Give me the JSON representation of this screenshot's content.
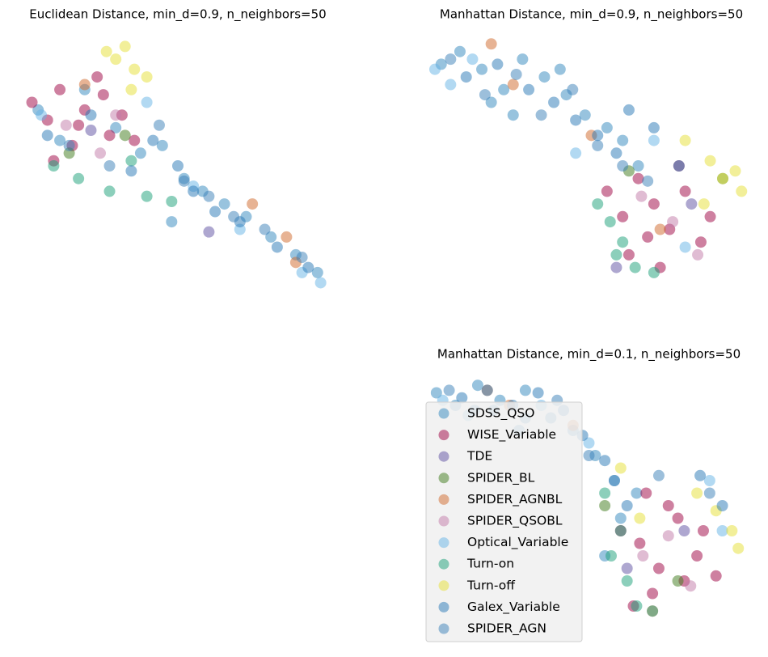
{
  "chart_data": [
    {
      "type": "scatter",
      "title": "Euclidean Distance, min_d=0.9, n_neighbors=50",
      "xlim": [
        0,
        100
      ],
      "ylim": [
        0,
        100
      ],
      "series": [
        {
          "color": "#3288bd",
          "x": [
            5,
            12,
            20,
            30,
            38,
            45,
            52,
            58,
            65,
            72,
            80,
            88,
            95,
            48
          ],
          "y": [
            72,
            60,
            80,
            65,
            55,
            58,
            45,
            40,
            35,
            30,
            22,
            15,
            8,
            28
          ]
        },
        {
          "color": "#9e0142",
          "x": [
            3,
            8,
            12,
            16,
            20,
            24,
            28,
            32,
            18,
            10,
            26,
            36
          ],
          "y": [
            75,
            68,
            80,
            58,
            72,
            85,
            62,
            70,
            66,
            52,
            78,
            60
          ]
        },
        {
          "color": "#5e4fa2",
          "x": [
            22,
            60
          ],
          "y": [
            64,
            24
          ]
        },
        {
          "color": "#3d7a1a",
          "x": [
            15,
            33
          ],
          "y": [
            55,
            62
          ]
        },
        {
          "color": "#d0672a",
          "x": [
            20,
            74,
            85,
            88
          ],
          "y": [
            82,
            35,
            22,
            12
          ]
        },
        {
          "color": "#c27aa8",
          "x": [
            14,
            25,
            30
          ],
          "y": [
            66,
            55,
            70
          ]
        },
        {
          "color": "#66b3e6",
          "x": [
            6,
            40,
            55,
            70,
            90,
            96
          ],
          "y": [
            70,
            75,
            42,
            25,
            8,
            4
          ]
        },
        {
          "color": "#19a078",
          "x": [
            10,
            18,
            28,
            35,
            40,
            48
          ],
          "y": [
            50,
            45,
            40,
            52,
            38,
            36
          ]
        },
        {
          "color": "#e6e033",
          "x": [
            27,
            30,
            33,
            36,
            35,
            40
          ],
          "y": [
            95,
            92,
            97,
            88,
            80,
            85
          ]
        },
        {
          "color": "#2878b5",
          "x": [
            8,
            22,
            35,
            42,
            50,
            55,
            62,
            70,
            82,
            92
          ],
          "y": [
            62,
            70,
            48,
            60,
            50,
            40,
            32,
            28,
            18,
            10
          ]
        },
        {
          "color": "#3a80b8",
          "x": [
            15,
            28,
            44,
            52,
            60,
            68,
            78,
            90
          ],
          "y": [
            58,
            50,
            66,
            44,
            38,
            30,
            25,
            14
          ]
        }
      ]
    },
    {
      "type": "scatter",
      "title": "Manhattan Distance, min_d=0.9, n_neighbors=50",
      "xlim": [
        0,
        100
      ],
      "ylim": [
        0,
        100
      ],
      "series": [
        {
          "color": "#3288bd",
          "x": [
            2,
            8,
            15,
            22,
            28,
            35,
            42,
            48,
            55,
            60,
            25,
            18,
            40,
            65
          ],
          "y": [
            90,
            95,
            88,
            80,
            92,
            85,
            78,
            70,
            65,
            60,
            70,
            75,
            88,
            50
          ]
        },
        {
          "color": "#9e0142",
          "x": [
            55,
            60,
            65,
            70,
            75,
            80,
            85,
            62,
            72,
            78,
            68,
            88
          ],
          "y": [
            40,
            30,
            45,
            35,
            25,
            40,
            20,
            15,
            10,
            50,
            22,
            30
          ]
        },
        {
          "color": "#5e4fa2",
          "x": [
            58,
            82
          ],
          "y": [
            10,
            35
          ]
        },
        {
          "color": "#3d7a1a",
          "x": [
            62,
            92
          ],
          "y": [
            48,
            45
          ]
        },
        {
          "color": "#d0672a",
          "x": [
            18,
            25,
            50,
            72
          ],
          "y": [
            98,
            82,
            62,
            25
          ]
        },
        {
          "color": "#c27aa8",
          "x": [
            66,
            76,
            84
          ],
          "y": [
            38,
            28,
            15
          ]
        },
        {
          "color": "#66b3e6",
          "x": [
            0,
            5,
            12,
            45,
            70,
            80
          ],
          "y": [
            88,
            82,
            92,
            55,
            60,
            18
          ]
        },
        {
          "color": "#19a078",
          "x": [
            52,
            56,
            58,
            64,
            70,
            60
          ],
          "y": [
            35,
            28,
            15,
            10,
            8,
            20
          ]
        },
        {
          "color": "#e6e033",
          "x": [
            80,
            88,
            92,
            96,
            98,
            86
          ],
          "y": [
            60,
            52,
            45,
            48,
            40,
            35
          ]
        },
        {
          "color": "#2878b5",
          "x": [
            10,
            20,
            30,
            38,
            45,
            52,
            58,
            62,
            70,
            78
          ],
          "y": [
            85,
            90,
            80,
            75,
            68,
            62,
            55,
            72,
            65,
            50
          ]
        },
        {
          "color": "#3a80b8",
          "x": [
            5,
            16,
            26,
            34,
            44,
            52,
            60,
            68
          ],
          "y": [
            92,
            78,
            86,
            70,
            80,
            58,
            50,
            44
          ]
        }
      ]
    },
    {
      "type": "scatter",
      "title": "Manhattan Distance, min_d=0.1, n_neighbors=50",
      "xlim": [
        0,
        100
      ],
      "ylim": [
        0,
        100
      ],
      "legend": "upper left",
      "series": [
        {
          "name": "SDSS_QSO",
          "color": "#3288bd",
          "x": [
            2,
            8,
            15,
            22,
            30,
            38,
            45,
            52,
            58,
            60,
            55,
            65,
            28,
            20
          ],
          "y": [
            95,
            90,
            98,
            92,
            96,
            85,
            80,
            70,
            60,
            45,
            30,
            55,
            80,
            88
          ]
        },
        {
          "name": "WISE_Variable",
          "color": "#9e0142",
          "x": [
            60,
            66,
            72,
            78,
            84,
            70,
            75,
            80,
            64,
            86,
            68,
            90
          ],
          "y": [
            40,
            35,
            25,
            45,
            30,
            15,
            50,
            20,
            10,
            40,
            55,
            22
          ]
        },
        {
          "name": "TDE",
          "color": "#5e4fa2",
          "x": [
            62,
            80
          ],
          "y": [
            25,
            40
          ]
        },
        {
          "name": "SPIDER_BL",
          "color": "#3d7a1a",
          "x": [
            55,
            78
          ],
          "y": [
            50,
            20
          ]
        },
        {
          "name": "SPIDER_AGNBL",
          "color": "#d0672a",
          "x": [
            18,
            25,
            45,
            70
          ],
          "y": [
            96,
            90,
            82,
            8
          ]
        },
        {
          "name": "SPIDER_QSOBL",
          "color": "#c27aa8",
          "x": [
            67,
            75,
            82
          ],
          "y": [
            30,
            38,
            18
          ]
        },
        {
          "name": "Optical_Variable",
          "color": "#66b3e6",
          "x": [
            4,
            12,
            35,
            50,
            88,
            92
          ],
          "y": [
            92,
            86,
            90,
            75,
            60,
            40
          ]
        },
        {
          "name": "Turn-on",
          "color": "#19a078",
          "x": [
            55,
            60,
            62,
            65,
            70,
            57
          ],
          "y": [
            55,
            40,
            20,
            10,
            8,
            30
          ]
        },
        {
          "name": "Turn-off",
          "color": "#e6e033",
          "x": [
            84,
            90,
            95,
            97,
            60,
            66
          ],
          "y": [
            55,
            48,
            40,
            33,
            65,
            45
          ]
        },
        {
          "name": "Galex_Variable",
          "color": "#2878b5",
          "x": [
            10,
            18,
            26,
            34,
            42,
            48,
            55,
            62,
            85,
            92
          ],
          "y": [
            93,
            96,
            90,
            95,
            88,
            78,
            68,
            50,
            62,
            50
          ]
        },
        {
          "name": "SPIDER_AGN",
          "color": "#3a80b8",
          "x": [
            6,
            14,
            30,
            40,
            50,
            58,
            72,
            88
          ],
          "y": [
            96,
            88,
            85,
            92,
            70,
            60,
            62,
            55
          ]
        }
      ]
    }
  ]
}
